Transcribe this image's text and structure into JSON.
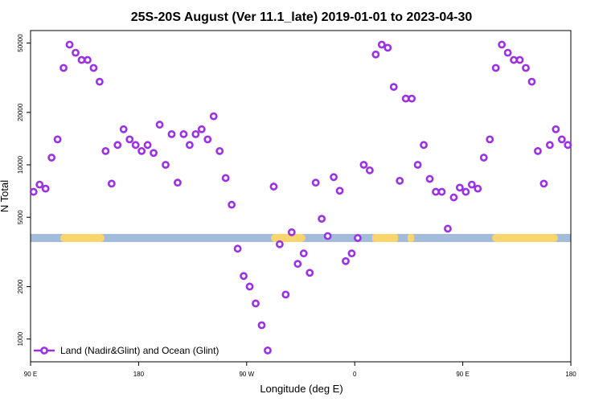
{
  "chart_data": {
    "type": "scatter",
    "title": "25S-20S August (Ver 11.1_late)   2019-01-01 to 2023-04-30",
    "x_label": "Longitude (deg E)",
    "y_label": "N Total",
    "xlim": [
      90,
      540
    ],
    "xticks": [
      {
        "value": 90,
        "label": "90 E"
      },
      {
        "value": 180,
        "label": "180"
      },
      {
        "value": 270,
        "label": "90 W"
      },
      {
        "value": 360,
        "label": "0"
      },
      {
        "value": 450,
        "label": "90 E"
      },
      {
        "value": 540,
        "label": "180"
      }
    ],
    "ylim": [
      740,
      59000
    ],
    "log_y": true,
    "yticks": [
      1000,
      2000,
      5000,
      10000,
      20000,
      50000
    ],
    "legend": "bottom-left",
    "series": [
      {
        "name": "Land (Nadir&Glint) and Ocean (Glint)",
        "color": "#9b30e6",
        "x": [
          92.5,
          97.5,
          102.5,
          107.5,
          112.5,
          117.5,
          122.5,
          127.5,
          132.5,
          137.5,
          142.5,
          147.5,
          152.5,
          157.5,
          162.5,
          167.5,
          172.5,
          177.5,
          182.5,
          187.5,
          192.5,
          197.5,
          202.5,
          207.5,
          212.5,
          217.5,
          222.5,
          227.5,
          232.5,
          237.5,
          242.5,
          247.5,
          252.5,
          257.5,
          262.5,
          267.5,
          272.5,
          277.5,
          282.5,
          287.5,
          292.5,
          297.5,
          302.5,
          307.5,
          312.5,
          317.5,
          322.5,
          327.5,
          332.5,
          337.5,
          342.5,
          347.5,
          352.5,
          357.5,
          362.5,
          367.5,
          372.5,
          377.5,
          382.5,
          387.5,
          392.5,
          397.5,
          402.5,
          407.5,
          412.5,
          417.5,
          422.5,
          427.5,
          432.5,
          437.5,
          442.5,
          447.5,
          452.5,
          457.5,
          462.5,
          467.5,
          472.5,
          477.5,
          482.5,
          487.5,
          492.5,
          497.5,
          502.5,
          507.5,
          512.5,
          517.5,
          522.5,
          527.5,
          532.5,
          537.5
        ],
        "values": [
          7000,
          7700,
          7300,
          11000,
          14000,
          36000,
          49000,
          44000,
          40000,
          40000,
          36000,
          30000,
          12000,
          7800,
          13000,
          16000,
          14000,
          13000,
          12000,
          13000,
          11700,
          17000,
          10000,
          15000,
          7900,
          15000,
          13000,
          15000,
          16000,
          14000,
          19000,
          12000,
          8400,
          5900,
          3300,
          2300,
          2000,
          1600,
          1200,
          860,
          7500,
          3500,
          1800,
          4100,
          2700,
          3100,
          2400,
          7900,
          4900,
          3900,
          8500,
          7100,
          2800,
          3100,
          3800,
          10000,
          9300,
          43000,
          49000,
          47000,
          28000,
          8100,
          24000,
          24000,
          10000,
          13000,
          8300,
          7000,
          7000,
          4300,
          6500,
          7400,
          7000,
          7700,
          7300,
          11000,
          14000,
          36000,
          49000,
          44000,
          40000,
          40000,
          36000,
          30000,
          12000,
          7800,
          13000,
          16000,
          14000,
          13000
        ]
      }
    ]
  }
}
